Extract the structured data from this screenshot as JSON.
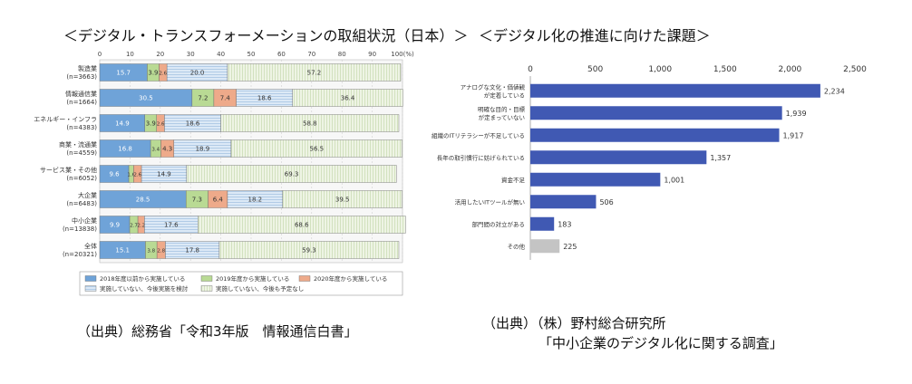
{
  "left_panel": {
    "title": "＜デジタル・トランスフォーメーションの取組状況（日本）＞",
    "source": "（出典）総務省「令和3年版　情報通信白書」"
  },
  "right_panel": {
    "title": "＜デジタル化の推進に向けた課題＞",
    "source_line1": "（出典）（株）野村総合研究所",
    "source_line2": "「中小企業のデジタル化に関する調査」"
  },
  "chart_data": [
    {
      "type": "bar",
      "orientation": "horizontal",
      "stacked": true,
      "title": "＜デジタル・トランスフォーメーションの取組状況（日本）＞",
      "xlim": [
        0,
        100
      ],
      "x_ticks": [
        "0",
        "10",
        "20",
        "30",
        "40",
        "50",
        "60",
        "70",
        "80",
        "90",
        "100(%)"
      ],
      "grid": true,
      "legend_position": "bottom",
      "categories": [
        [
          "製造業",
          "(n=3663)"
        ],
        [
          "情報通信業",
          "(n=1664)"
        ],
        [
          "エネルギー・インフラ",
          "(n=4383)"
        ],
        [
          "商業・流通業",
          "(n=4559)"
        ],
        [
          "サービス業・その他",
          "(n=6052)"
        ],
        [
          "大企業",
          "(n=6483)"
        ],
        [
          "中小企業",
          "(n=13838)"
        ],
        [
          "全体",
          "(n=20321)"
        ]
      ],
      "series": [
        {
          "name": "2018年度以前から実施している",
          "color": "#5b9bd5",
          "values": [
            15.7,
            30.5,
            14.9,
            16.8,
            9.6,
            28.5,
            9.9,
            15.1
          ],
          "labels": [
            "15.7",
            "30.5",
            "14.9",
            "16.8",
            "9.6",
            "28.5",
            "9.9",
            "15.1"
          ]
        },
        {
          "name": "2019年度から実施している",
          "color": "#b5d88f",
          "values": [
            3.9,
            7.2,
            3.9,
            3.4,
            1.6,
            7.3,
            2.7,
            3.8
          ],
          "labels": [
            "3.9",
            "7.2",
            "3.9",
            "3.4",
            "1.6",
            "7.3",
            "2.7",
            "3.8"
          ]
        },
        {
          "name": "2020年度から実施している",
          "color": "#f0a886",
          "values": [
            2.6,
            7.4,
            2.6,
            4.3,
            2.6,
            6.4,
            2.2,
            2.8
          ],
          "labels": [
            "2.6",
            "7.4",
            "2.6",
            "4.3",
            "2.6",
            "6.4",
            "2.2",
            "2.8"
          ]
        },
        {
          "name": "実施していない、今後実施を検討",
          "color": "#d9e7f5",
          "values": [
            20.0,
            18.6,
            18.6,
            18.9,
            14.9,
            18.2,
            17.6,
            17.8
          ],
          "labels": [
            "20.0",
            "18.6",
            "18.6",
            "18.9",
            "14.9",
            "18.2",
            "17.6",
            "17.8"
          ]
        },
        {
          "name": "実施していない、今後も予定なし",
          "color": "#e8f0dc",
          "values": [
            57.2,
            36.4,
            58.8,
            56.5,
            69.3,
            39.5,
            68.6,
            59.3
          ],
          "labels": [
            "57.2",
            "36.4",
            "58.8",
            "56.5",
            "69.3",
            "39.5",
            "68.6",
            "59.3"
          ]
        }
      ]
    },
    {
      "type": "bar",
      "orientation": "horizontal",
      "title": "＜デジタル化の推進に向けた課題＞",
      "xlim": [
        0,
        2500
      ],
      "x_ticks": [
        "0",
        "500",
        "1,000",
        "1,500",
        "2,000",
        "2,500"
      ],
      "grid": false,
      "categories": [
        [
          "アナログな文化・価値観",
          "が定着している"
        ],
        [
          "明確な目的・目標",
          "が定まっていない"
        ],
        [
          "組織のITリテラシーが不足している"
        ],
        [
          "長年の取引慣行に妨げられている"
        ],
        [
          "資金不足"
        ],
        [
          "活用したいITツールが無い"
        ],
        [
          "部門間の対立がある"
        ],
        [
          "その他"
        ]
      ],
      "values": [
        2234,
        1939,
        1917,
        1357,
        1001,
        506,
        183,
        225
      ],
      "value_labels": [
        "2,234",
        "1,939",
        "1,917",
        "1,357",
        "1,001",
        "506",
        "183",
        "225"
      ],
      "colors": [
        "#4059b3",
        "#4059b3",
        "#4059b3",
        "#4059b3",
        "#4059b3",
        "#4059b3",
        "#4059b3",
        "#c4c4c4"
      ]
    }
  ]
}
